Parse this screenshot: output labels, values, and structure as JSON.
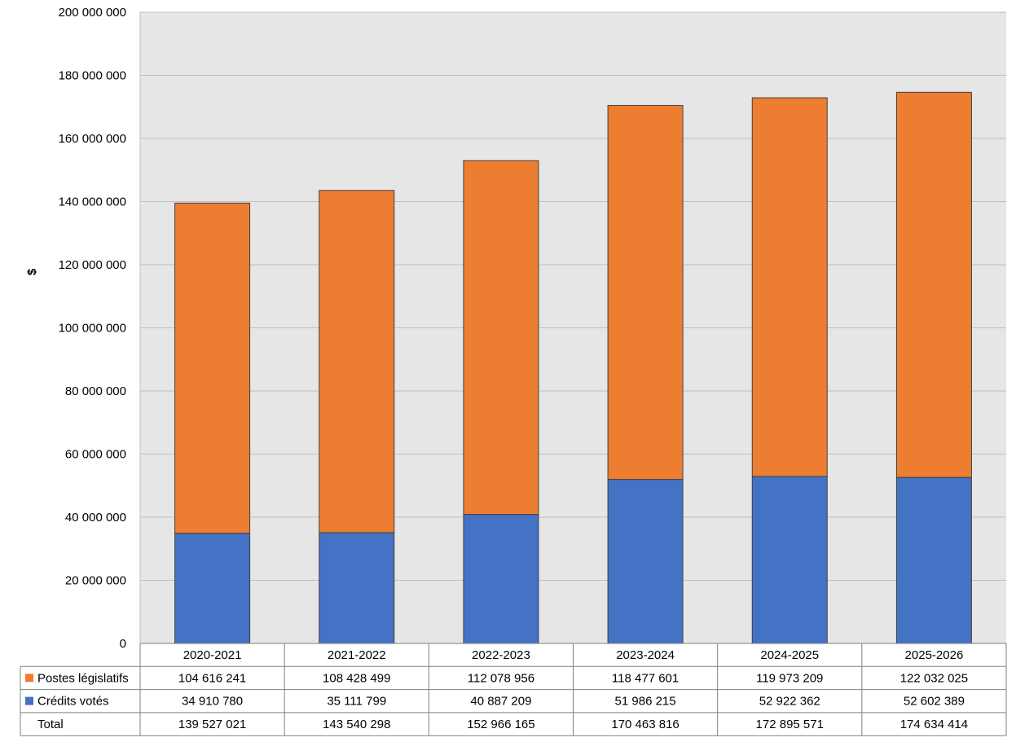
{
  "chart_data": {
    "type": "bar",
    "stacked": true,
    "title": "",
    "ylabel": "$",
    "ylim": [
      0,
      200000000
    ],
    "ytick_step": 20000000,
    "ytick_labels": [
      "0",
      "20 000 000",
      "40 000 000",
      "60 000 000",
      "80 000 000",
      "100 000 000",
      "120 000 000",
      "140 000 000",
      "160 000 000",
      "180 000 000",
      "200 000 000"
    ],
    "grid": true,
    "legend": "data-table",
    "categories": [
      "2020-2021",
      "2021-2022",
      "2022-2023",
      "2023-2024",
      "2024-2025",
      "2025-2026"
    ],
    "series": [
      {
        "name": "Crédits votés",
        "color": "#4472C4",
        "values": [
          34910780,
          35111799,
          40887209,
          51986215,
          52922362,
          52602389
        ],
        "labels": [
          "34 910 780",
          "35 111 799",
          "40 887 209",
          "51 986 215",
          "52 922 362",
          "52 602 389"
        ]
      },
      {
        "name": "Postes législatifs",
        "color": "#ED7D31",
        "values": [
          104616241,
          108428499,
          112078956,
          118477601,
          119973209,
          122032025
        ],
        "labels": [
          "104 616 241",
          "108 428 499",
          "112 078 956",
          "118 477 601",
          "119 973 209",
          "122 032 025"
        ]
      }
    ],
    "table": {
      "row_order": [
        "Postes législatifs",
        "Crédits votés",
        "Total"
      ],
      "total_label": "Total",
      "totals": [
        139527021,
        143540298,
        152966165,
        170463816,
        172895571,
        174634414
      ],
      "total_labels": [
        "139 527 021",
        "143 540 298",
        "152 966 165",
        "170 463 816",
        "172 895 571",
        "174 634 414"
      ]
    }
  },
  "colors": {
    "plot_background": "#E7E6E6",
    "gridline": "#BFBFBF",
    "bar_outline": "#404040"
  }
}
